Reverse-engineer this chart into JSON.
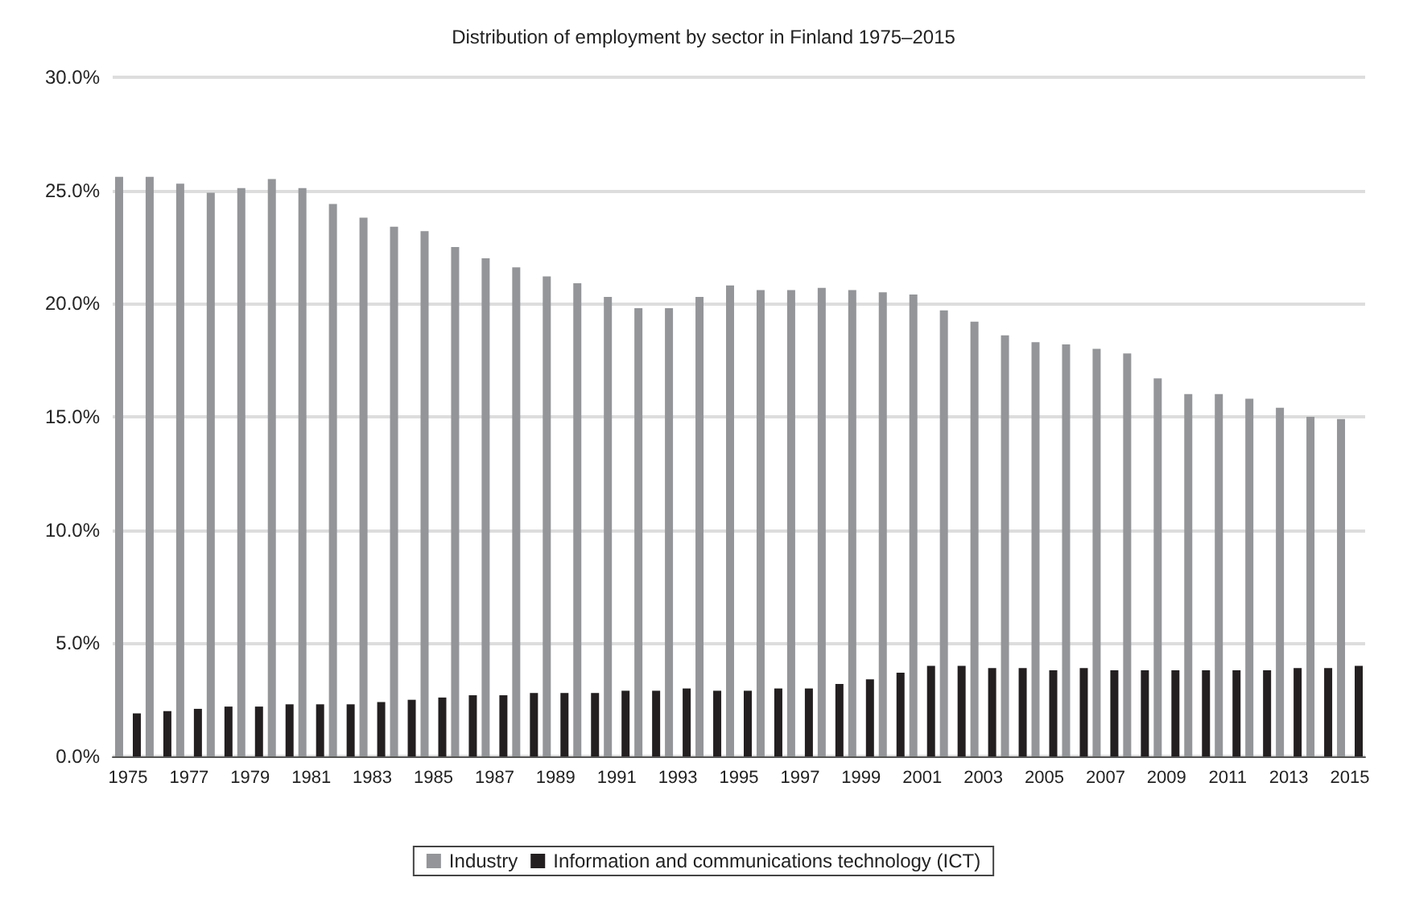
{
  "chart_data": {
    "type": "bar",
    "title": "Distribution of employment by sector in Finland 1975–2015",
    "categories": [
      "1975",
      null,
      "1977",
      null,
      "1979",
      null,
      "1981",
      null,
      "1983",
      null,
      "1985",
      null,
      "1987",
      null,
      "1989",
      null,
      "1991",
      null,
      "1993",
      null,
      "1995",
      null,
      "1997",
      null,
      "1999",
      null,
      "2001",
      null,
      "2003",
      null,
      "2005",
      null,
      "2007",
      null,
      "2009",
      null,
      "2011",
      null,
      "2013",
      null,
      "2015"
    ],
    "series": [
      {
        "name": "Industry",
        "color": "#939598",
        "values": [
          25.6,
          25.6,
          25.3,
          24.9,
          25.1,
          25.5,
          25.1,
          24.4,
          23.8,
          23.4,
          23.2,
          22.5,
          22.0,
          21.6,
          21.2,
          20.9,
          20.3,
          19.8,
          19.8,
          20.3,
          20.8,
          20.6,
          20.6,
          20.7,
          20.6,
          20.5,
          20.4,
          19.7,
          19.2,
          18.6,
          18.3,
          18.2,
          18.0,
          17.8,
          16.7,
          16.0,
          16.0,
          15.8,
          15.4,
          15.0,
          14.9
        ]
      },
      {
        "name": "Information and communications technology (ICT)",
        "color": "#231f20",
        "values": [
          1.9,
          2.0,
          2.1,
          2.2,
          2.2,
          2.3,
          2.3,
          2.3,
          2.4,
          2.5,
          2.6,
          2.7,
          2.7,
          2.8,
          2.8,
          2.8,
          2.9,
          2.9,
          3.0,
          2.9,
          2.9,
          3.0,
          3.0,
          3.2,
          3.4,
          3.7,
          4.0,
          4.0,
          3.9,
          3.9,
          3.8,
          3.9,
          3.8,
          3.8,
          3.8,
          3.8,
          3.8,
          3.8,
          3.9,
          3.9,
          4.0
        ]
      }
    ],
    "ylim": [
      0,
      30
    ],
    "yticks": [
      {
        "value": 0,
        "label": "0.0%"
      },
      {
        "value": 5,
        "label": "5.0%"
      },
      {
        "value": 10,
        "label": "10.0%"
      },
      {
        "value": 15,
        "label": "15.0%"
      },
      {
        "value": 20,
        "label": "20.0%"
      },
      {
        "value": 25,
        "label": "25.0%"
      },
      {
        "value": 30,
        "label": "30.0%"
      }
    ],
    "grid": "y",
    "legend": "bottom"
  }
}
